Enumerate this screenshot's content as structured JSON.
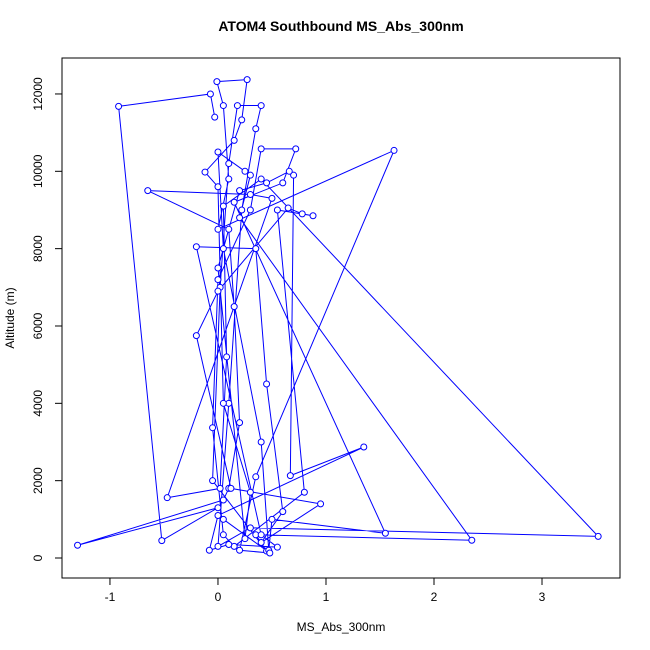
{
  "chart_data": {
    "type": "line",
    "title": "ATOM4 Southbound MS_Abs_300nm",
    "x_label": "MS_Abs_300nm",
    "y_label": "Altitude (m)",
    "color": "#0000ff",
    "markers": true,
    "xlim": [
      -1.444,
      3.722
    ],
    "ylim": [
      -517,
      12930
    ],
    "xticks": [
      -1,
      0,
      1,
      2,
      3
    ],
    "yticks": [
      0,
      2000,
      4000,
      6000,
      8000,
      10000,
      12000
    ],
    "x": [
      -0.03,
      -0.07,
      -0.92,
      -0.52,
      0.0,
      -1.3,
      0.05,
      0.1,
      0.2,
      0.15,
      0.1,
      -0.65,
      0.3,
      0.5,
      -0.47,
      0.02,
      0.08,
      0.05,
      0.4,
      3.52,
      0.3,
      0.0,
      0.1,
      0.22,
      0.35,
      0.4,
      0.18,
      0.1,
      0.02,
      -0.05,
      0.45,
      0.35,
      2.35,
      0.2,
      0.3,
      0.25,
      0.0,
      0.05,
      0.4,
      0.47,
      0.5,
      1.55,
      0.15,
      0.6,
      0.72,
      0.4,
      0.3,
      0.0,
      -0.05,
      0.05,
      0.15,
      0.8,
      0.55,
      0.88,
      0.78,
      0.65,
      0.0,
      -0.2,
      0.12,
      0.95,
      0.4,
      0.6,
      0.45,
      0.35,
      -0.2,
      0.4,
      0.55,
      0.1,
      -0.08,
      0.0,
      1.35,
      0.67,
      0.7,
      0.66,
      0.45,
      0.2,
      0.0,
      0.25,
      0.3,
      0.05,
      0.0,
      -0.12,
      0.15,
      0.22,
      0.27,
      -0.01,
      0.05,
      0.1,
      0.0,
      1.63,
      0.35,
      0.2,
      0.48,
      0.05
    ],
    "values": [
      11400,
      12000,
      11680,
      450,
      1300,
      330,
      1500,
      1800,
      3500,
      6500,
      8500,
      9500,
      9400,
      9300,
      1560,
      1800,
      5200,
      9100,
      9800,
      560,
      780,
      300,
      4000,
      9000,
      11100,
      11700,
      11700,
      10200,
      7000,
      2000,
      180,
      600,
      460,
      8800,
      9900,
      10000,
      10500,
      8000,
      3000,
      200,
      1000,
      640,
      9200,
      9700,
      10580,
      10580,
      9000,
      7200,
      3370,
      600,
      300,
      1700,
      9000,
      8850,
      8900,
      9050,
      6900,
      5750,
      1800,
      1400,
      400,
      1200,
      4500,
      8000,
      8050,
      600,
      280,
      350,
      200,
      1100,
      2870,
      2130,
      9900,
      10000,
      9700,
      9500,
      7500,
      500,
      1700,
      4000,
      9600,
      9980,
      10800,
      11330,
      12370,
      12320,
      11700,
      9800,
      8500,
      10540,
      2100,
      200,
      130,
      1000
    ]
  }
}
